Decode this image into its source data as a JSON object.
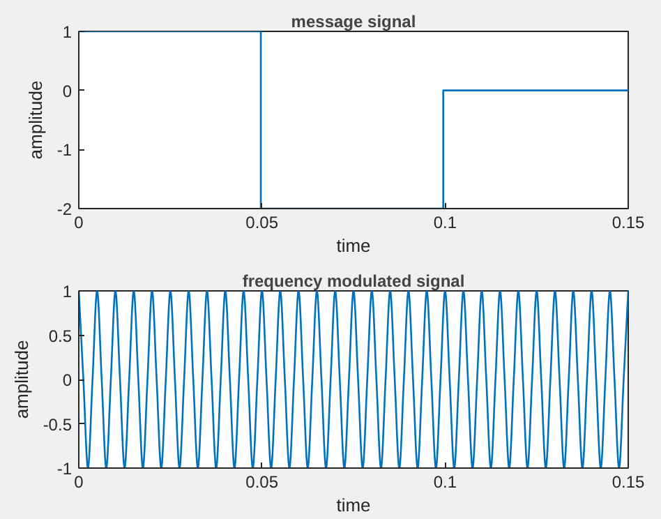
{
  "chart_data": [
    {
      "type": "line",
      "title": "message signal",
      "xlabel": "time",
      "ylabel": "amplitude",
      "xlim": [
        0,
        0.15
      ],
      "ylim": [
        -2,
        1
      ],
      "xticks": [
        0,
        0.05,
        0.1,
        0.15
      ],
      "yticks": [
        -2,
        -1,
        0,
        1
      ],
      "marker": "none",
      "line_style": "solid",
      "series": [
        {
          "color": "#0072bd",
          "x": [
            0,
            0.0497,
            0.0497,
            0.0995,
            0.0995,
            0.15
          ],
          "values": [
            1,
            1,
            -2,
            -2,
            0,
            0
          ]
        }
      ]
    },
    {
      "type": "line",
      "title": "frequency modulated signal",
      "xlabel": "time",
      "ylabel": "amplitude",
      "xlim": [
        0,
        0.15
      ],
      "ylim": [
        -1,
        1
      ],
      "xticks": [
        0,
        0.05,
        0.1,
        0.15
      ],
      "yticks": [
        -1,
        -0.5,
        0,
        0.5,
        1
      ],
      "marker": "none",
      "line_style": "solid",
      "series": [
        {
          "color": "#0072bd",
          "x": [
            0,
            0.00125,
            0.0025,
            0.00375,
            0.005,
            0.00625,
            0.0075,
            0.00875,
            0.01,
            0.01125,
            0.0125,
            0.01375,
            0.015,
            0.01625,
            0.0175,
            0.01875,
            0.02,
            0.02125,
            0.0225,
            0.02375,
            0.025,
            0.02625,
            0.0275,
            0.02875,
            0.03,
            0.03125,
            0.0325,
            0.03375,
            0.035,
            0.03625,
            0.0375,
            0.03875,
            0.04,
            0.04125,
            0.0425,
            0.04375,
            0.045,
            0.04625,
            0.0475,
            0.04875,
            0.05,
            0.05125,
            0.0525,
            0.05375,
            0.055,
            0.05625,
            0.0575,
            0.05875,
            0.06,
            0.06125,
            0.0625,
            0.06375,
            0.065,
            0.06625,
            0.0675,
            0.06875,
            0.07,
            0.07125,
            0.0725,
            0.07375,
            0.075,
            0.07625,
            0.0775,
            0.07875,
            0.08,
            0.08125,
            0.0825,
            0.08375,
            0.085,
            0.08625,
            0.0875,
            0.08875,
            0.09,
            0.09125,
            0.0925,
            0.09375,
            0.095,
            0.09625,
            0.0975,
            0.09875,
            0.1,
            0.10125,
            0.1025,
            0.10375,
            0.105,
            0.10625,
            0.1075,
            0.10875,
            0.11,
            0.11125,
            0.1125,
            0.11375,
            0.115,
            0.11625,
            0.1175,
            0.11875,
            0.12,
            0.12125,
            0.1225,
            0.12375,
            0.125,
            0.12625,
            0.1275,
            0.12875,
            0.13,
            0.13125,
            0.1325,
            0.13375,
            0.135,
            0.13625,
            0.1375,
            0.13875,
            0.14,
            0.14125,
            0.1425,
            0.14375,
            0.145,
            0.14625,
            0.1475,
            0.14875,
            0.15
          ],
          "values": [
            1,
            0,
            -1,
            0,
            1,
            0,
            -1,
            0,
            1,
            0,
            -1,
            0,
            1,
            0,
            -1,
            0,
            1,
            0,
            -1,
            0,
            1,
            0,
            -1,
            0,
            1,
            0,
            -1,
            0,
            1,
            0,
            -1,
            0,
            1,
            0,
            -1,
            0,
            1,
            0,
            -1,
            0,
            1,
            0,
            -1,
            0,
            1,
            0,
            -1,
            0,
            1,
            0,
            -1,
            0,
            1,
            0,
            -1,
            0,
            1,
            0,
            -1,
            0,
            1,
            0,
            -1,
            0,
            1,
            0,
            -1,
            0,
            1,
            0,
            -1,
            0,
            1,
            0,
            -1,
            0,
            1,
            0,
            -1,
            0,
            1,
            0,
            -1,
            0,
            1,
            0,
            -1,
            0,
            1,
            0,
            -1,
            0,
            1,
            0,
            -1,
            0,
            1,
            0,
            -1,
            0,
            1,
            0,
            -1,
            0,
            1,
            0,
            -1,
            0,
            1,
            0,
            -1,
            0,
            1,
            0,
            -1,
            0,
            1,
            0,
            -1,
            0,
            1
          ]
        }
      ]
    }
  ]
}
